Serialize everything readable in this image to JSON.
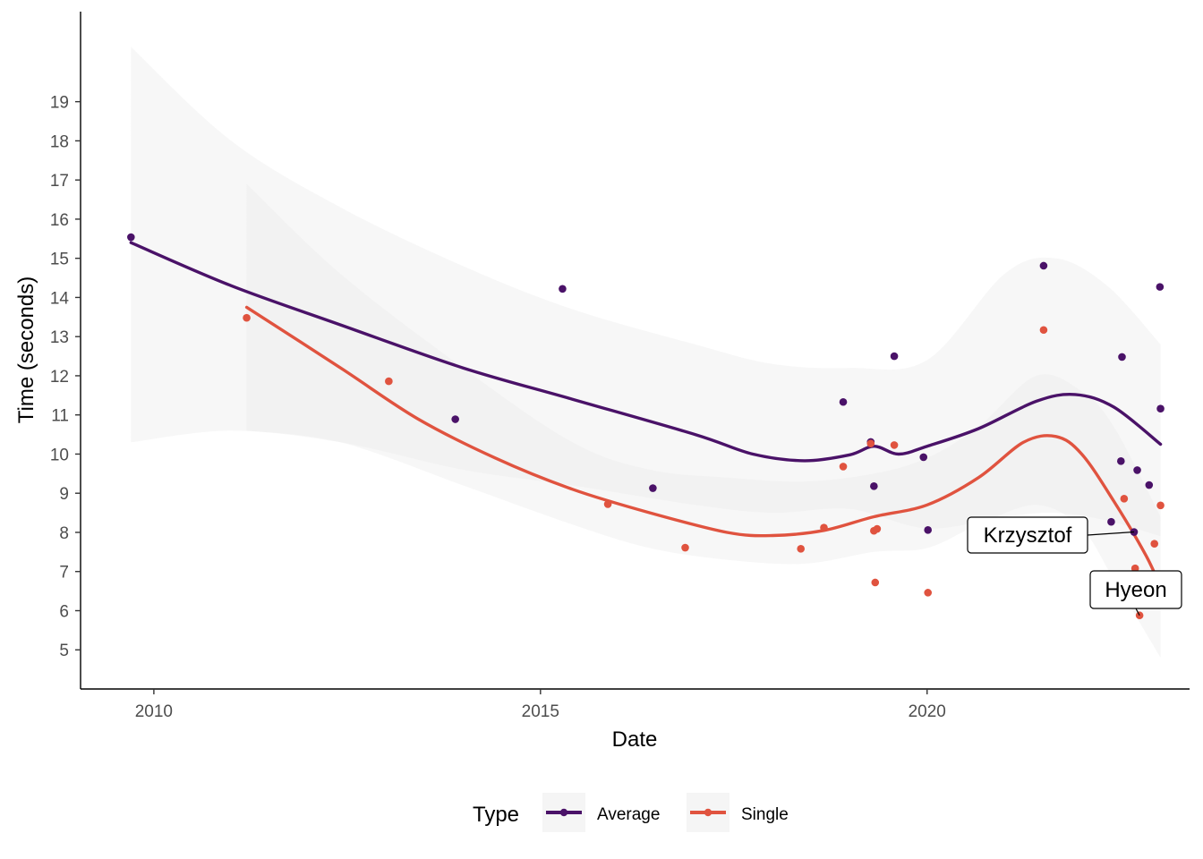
{
  "chart_data": {
    "type": "scatter",
    "title": "",
    "xlabel": "Date",
    "ylabel": "Time (seconds)",
    "x_ticks": [
      "2010",
      "2015",
      "2020"
    ],
    "y_ticks": [
      "5",
      "6",
      "7",
      "8",
      "9",
      "10",
      "11",
      "12",
      "13",
      "14",
      "15",
      "16",
      "17",
      "18",
      "19"
    ],
    "xlim": [
      "2009-01-20",
      "2023-05-25"
    ],
    "ylim": [
      4.0,
      21.3
    ],
    "legend": {
      "title": "Type",
      "position": "bottom",
      "entries": [
        "Average",
        "Single"
      ]
    },
    "colors": {
      "Average": "#4a1268",
      "Single": "#e0533f",
      "band": "#ebebeb",
      "axis": "#000000"
    },
    "series": [
      {
        "name": "Average",
        "points": [
          {
            "x": "2009-09-15",
            "y": 15.54
          },
          {
            "x": "2013-11-25",
            "y": 10.89
          },
          {
            "x": "2015-04-15",
            "y": 14.22
          },
          {
            "x": "2016-06-15",
            "y": 9.13
          },
          {
            "x": "2018-12-01",
            "y": 11.33
          },
          {
            "x": "2019-04-10",
            "y": 10.31
          },
          {
            "x": "2019-04-25",
            "y": 9.18
          },
          {
            "x": "2019-07-30",
            "y": 12.5
          },
          {
            "x": "2019-12-15",
            "y": 9.92
          },
          {
            "x": "2020-01-05",
            "y": 8.06
          },
          {
            "x": "2021-07-05",
            "y": 14.81
          },
          {
            "x": "2022-05-20",
            "y": 8.27
          },
          {
            "x": "2022-07-10",
            "y": 12.48
          },
          {
            "x": "2022-07-05",
            "y": 9.82
          },
          {
            "x": "2022-09-05",
            "y": 8.01
          },
          {
            "x": "2022-09-20",
            "y": 9.59
          },
          {
            "x": "2022-11-15",
            "y": 9.21
          },
          {
            "x": "2023-01-05",
            "y": 14.27
          },
          {
            "x": "2023-01-08",
            "y": 11.16
          }
        ],
        "smooth": [
          {
            "x": "2009-09-15",
            "y": 15.4
          },
          {
            "x": "2011-01-01",
            "y": 14.3
          },
          {
            "x": "2012-06-01",
            "y": 13.3
          },
          {
            "x": "2014-01-01",
            "y": 12.2
          },
          {
            "x": "2015-06-01",
            "y": 11.4
          },
          {
            "x": "2017-01-01",
            "y": 10.5
          },
          {
            "x": "2017-10-01",
            "y": 10.0
          },
          {
            "x": "2018-06-01",
            "y": 9.83
          },
          {
            "x": "2019-01-01",
            "y": 9.98
          },
          {
            "x": "2019-04-25",
            "y": 10.2
          },
          {
            "x": "2019-08-20",
            "y": 10.0
          },
          {
            "x": "2020-01-01",
            "y": 10.2
          },
          {
            "x": "2020-09-01",
            "y": 10.65
          },
          {
            "x": "2021-06-01",
            "y": 11.35
          },
          {
            "x": "2021-12-01",
            "y": 11.52
          },
          {
            "x": "2022-06-01",
            "y": 11.2
          },
          {
            "x": "2023-01-08",
            "y": 10.25
          }
        ],
        "band": [
          {
            "x": "2009-09-15",
            "lo": 10.3,
            "hi": 20.4
          },
          {
            "x": "2011-01-01",
            "lo": 10.6,
            "hi": 18.0
          },
          {
            "x": "2012-06-01",
            "lo": 10.3,
            "hi": 16.3
          },
          {
            "x": "2014-01-01",
            "lo": 9.6,
            "hi": 14.8
          },
          {
            "x": "2015-06-01",
            "lo": 9.2,
            "hi": 13.7
          },
          {
            "x": "2017-01-01",
            "lo": 8.7,
            "hi": 12.8
          },
          {
            "x": "2018-01-01",
            "lo": 8.5,
            "hi": 12.3
          },
          {
            "x": "2019-01-01",
            "lo": 8.6,
            "hi": 12.2
          },
          {
            "x": "2020-01-01",
            "lo": 8.1,
            "hi": 12.4
          },
          {
            "x": "2021-01-01",
            "lo": 8.4,
            "hi": 14.6
          },
          {
            "x": "2021-09-01",
            "lo": 8.5,
            "hi": 15.0
          },
          {
            "x": "2022-05-01",
            "lo": 8.3,
            "hi": 14.3
          },
          {
            "x": "2023-01-08",
            "lo": 7.9,
            "hi": 12.8
          }
        ]
      },
      {
        "name": "Single",
        "points": [
          {
            "x": "2011-03-15",
            "y": 13.48
          },
          {
            "x": "2013-01-15",
            "y": 11.86
          },
          {
            "x": "2015-11-15",
            "y": 8.72
          },
          {
            "x": "2016-11-15",
            "y": 7.61
          },
          {
            "x": "2018-05-15",
            "y": 7.58
          },
          {
            "x": "2018-09-01",
            "y": 8.12
          },
          {
            "x": "2018-12-01",
            "y": 9.68
          },
          {
            "x": "2019-04-10",
            "y": 10.27
          },
          {
            "x": "2019-04-25",
            "y": 8.04
          },
          {
            "x": "2019-05-10",
            "y": 8.09
          },
          {
            "x": "2019-05-01",
            "y": 6.72
          },
          {
            "x": "2019-07-30",
            "y": 10.23
          },
          {
            "x": "2020-01-05",
            "y": 6.46
          },
          {
            "x": "2021-07-05",
            "y": 13.17
          },
          {
            "x": "2022-07-20",
            "y": 8.86
          },
          {
            "x": "2022-09-10",
            "y": 7.08
          },
          {
            "x": "2022-10-01",
            "y": 5.88
          },
          {
            "x": "2022-12-10",
            "y": 7.71
          },
          {
            "x": "2023-01-08",
            "y": 8.69
          }
        ],
        "smooth": [
          {
            "x": "2011-03-15",
            "y": 13.75
          },
          {
            "x": "2012-06-01",
            "y": 12.2
          },
          {
            "x": "2013-06-01",
            "y": 10.9
          },
          {
            "x": "2014-06-01",
            "y": 9.9
          },
          {
            "x": "2015-06-01",
            "y": 9.1
          },
          {
            "x": "2016-06-01",
            "y": 8.5
          },
          {
            "x": "2017-06-01",
            "y": 8.0
          },
          {
            "x": "2018-01-01",
            "y": 7.92
          },
          {
            "x": "2018-09-01",
            "y": 8.05
          },
          {
            "x": "2019-04-25",
            "y": 8.4
          },
          {
            "x": "2020-01-01",
            "y": 8.7
          },
          {
            "x": "2020-09-01",
            "y": 9.4
          },
          {
            "x": "2021-04-01",
            "y": 10.3
          },
          {
            "x": "2021-09-01",
            "y": 10.45
          },
          {
            "x": "2022-01-01",
            "y": 10.0
          },
          {
            "x": "2022-06-01",
            "y": 8.8
          },
          {
            "x": "2022-11-01",
            "y": 7.4
          },
          {
            "x": "2023-01-08",
            "y": 6.6
          }
        ],
        "band": [
          {
            "x": "2011-03-15",
            "lo": 10.6,
            "hi": 16.9
          },
          {
            "x": "2012-06-01",
            "lo": 10.3,
            "hi": 14.6
          },
          {
            "x": "2014-01-01",
            "lo": 9.2,
            "hi": 12.2
          },
          {
            "x": "2015-06-01",
            "lo": 8.2,
            "hi": 10.3
          },
          {
            "x": "2016-06-01",
            "lo": 7.6,
            "hi": 9.6
          },
          {
            "x": "2017-06-01",
            "lo": 7.3,
            "hi": 9.4
          },
          {
            "x": "2018-06-01",
            "lo": 7.2,
            "hi": 9.3
          },
          {
            "x": "2019-04-25",
            "lo": 7.5,
            "hi": 9.5
          },
          {
            "x": "2020-01-01",
            "lo": 7.6,
            "hi": 9.9
          },
          {
            "x": "2020-09-01",
            "lo": 8.2,
            "hi": 10.7
          },
          {
            "x": "2021-06-01",
            "lo": 8.7,
            "hi": 12.0
          },
          {
            "x": "2022-01-01",
            "lo": 8.1,
            "hi": 11.6
          },
          {
            "x": "2022-06-01",
            "lo": 6.8,
            "hi": 10.7
          },
          {
            "x": "2023-01-08",
            "lo": 4.8,
            "hi": 8.4
          }
        ]
      }
    ],
    "annotations": [
      {
        "label": "Krzysztof",
        "x": "2022-09-05",
        "y": 8.01
      },
      {
        "label": "Hyeon",
        "x": "2022-10-01",
        "y": 5.88
      }
    ]
  }
}
